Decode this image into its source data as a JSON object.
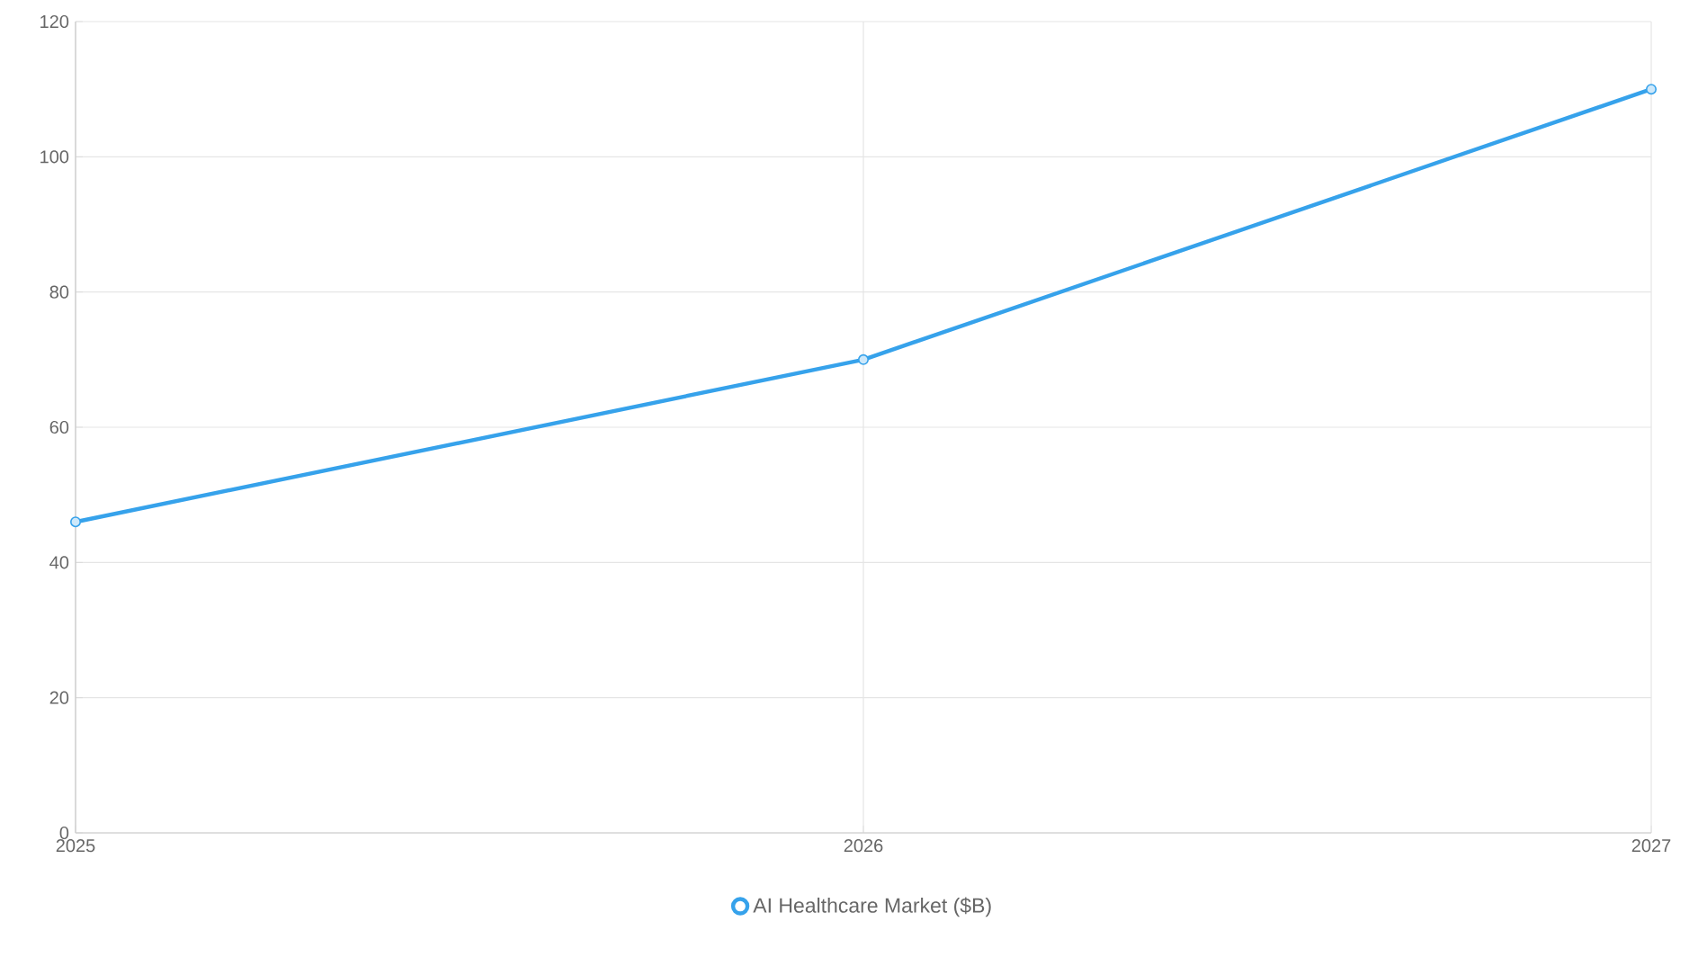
{
  "chart_data": {
    "type": "line",
    "categories": [
      "2025",
      "2026",
      "2027"
    ],
    "series": [
      {
        "name": "AI Healthcare Market ($B)",
        "color": "#36a2eb",
        "values": [
          46,
          70,
          110
        ]
      }
    ],
    "ylim": [
      0,
      120
    ],
    "yticks": [
      0,
      20,
      40,
      60,
      80,
      100,
      120
    ],
    "grid": true,
    "legend": "bottom",
    "marker": "circle",
    "line_style": "solid"
  }
}
